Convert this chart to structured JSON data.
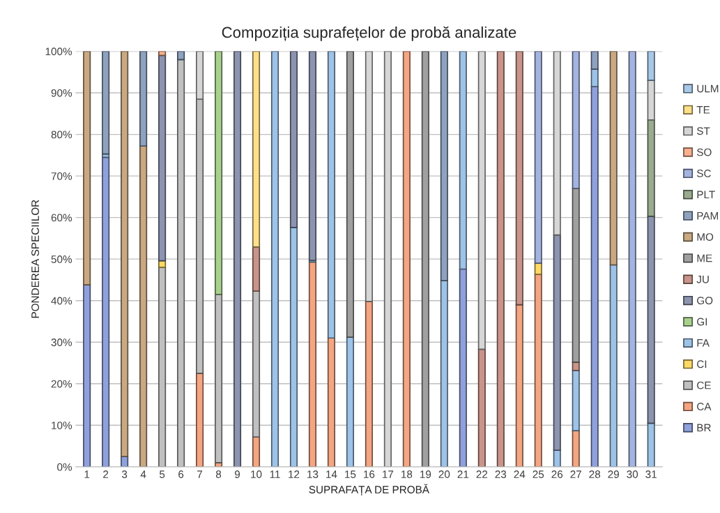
{
  "chart_data": {
    "type": "bar",
    "stacked": true,
    "title": "Compoziția suprafețelor de probă analizate",
    "xlabel": "SUPRAFAȚA DE PROBĂ",
    "ylabel": "PONDEREA SPECIILOR",
    "categories": [
      "1",
      "2",
      "3",
      "4",
      "5",
      "6",
      "7",
      "8",
      "9",
      "10",
      "11",
      "12",
      "13",
      "14",
      "15",
      "16",
      "17",
      "18",
      "19",
      "20",
      "21",
      "22",
      "23",
      "24",
      "25",
      "26",
      "27",
      "28",
      "29",
      "30",
      "31"
    ],
    "ylim": [
      0,
      100
    ],
    "yticks": [
      {
        "value": 0,
        "label": "0%"
      },
      {
        "value": 10,
        "label": "10%"
      },
      {
        "value": 20,
        "label": "20%"
      },
      {
        "value": 30,
        "label": "30%"
      },
      {
        "value": 40,
        "label": "40%"
      },
      {
        "value": 50,
        "label": "50%"
      },
      {
        "value": 60,
        "label": "60%"
      },
      {
        "value": 70,
        "label": "70%"
      },
      {
        "value": 80,
        "label": "80%"
      },
      {
        "value": 90,
        "label": "90%"
      },
      {
        "value": 100,
        "label": "100%"
      }
    ],
    "grid": "y",
    "legend": "right",
    "series": [
      {
        "name": "BR",
        "color": "#8fa0dc",
        "values": [
          43.8,
          74.5,
          2.5,
          null,
          null,
          null,
          null,
          null,
          null,
          null,
          null,
          null,
          null,
          null,
          null,
          null,
          null,
          null,
          null,
          null,
          47.6,
          null,
          null,
          null,
          null,
          null,
          null,
          91.5,
          null,
          null,
          null
        ]
      },
      {
        "name": "CA",
        "color": "#f4a582",
        "values": [
          null,
          null,
          null,
          null,
          null,
          null,
          22.5,
          1.0,
          null,
          7.2,
          null,
          null,
          49.3,
          31,
          null,
          39.8,
          null,
          100,
          null,
          null,
          null,
          null,
          null,
          39,
          46.3,
          null,
          8.7,
          null,
          null,
          null,
          null
        ]
      },
      {
        "name": "CE",
        "color": "#c0c0c0",
        "values": [
          null,
          null,
          null,
          null,
          48,
          98,
          66,
          40.5,
          null,
          35.1,
          null,
          null,
          null,
          null,
          null,
          null,
          null,
          null,
          null,
          null,
          null,
          null,
          null,
          null,
          null,
          null,
          null,
          null,
          null,
          null,
          null
        ]
      },
      {
        "name": "CI",
        "color": "#ffd966",
        "values": [
          null,
          null,
          null,
          null,
          1.6,
          null,
          null,
          null,
          null,
          null,
          null,
          null,
          null,
          null,
          null,
          null,
          null,
          null,
          null,
          null,
          null,
          null,
          null,
          null,
          2.7,
          null,
          null,
          null,
          null,
          null,
          null
        ]
      },
      {
        "name": "FA",
        "color": "#9dc3e6",
        "values": [
          null,
          0.8,
          null,
          null,
          null,
          null,
          null,
          null,
          null,
          null,
          100,
          57.6,
          0.4,
          69,
          31.2,
          null,
          null,
          null,
          null,
          44.8,
          52.4,
          null,
          null,
          null,
          null,
          4.0,
          14.5,
          4.2,
          48.6,
          null,
          10.5
        ]
      },
      {
        "name": "GI",
        "color": "#a9d18e",
        "values": [
          null,
          null,
          null,
          null,
          null,
          null,
          null,
          58.5,
          null,
          null,
          null,
          null,
          null,
          null,
          null,
          null,
          null,
          null,
          null,
          null,
          null,
          null,
          null,
          null,
          null,
          null,
          null,
          null,
          null,
          null,
          null
        ]
      },
      {
        "name": "GO",
        "color": "#8c94b0",
        "values": [
          null,
          null,
          null,
          null,
          49.4,
          null,
          null,
          null,
          100,
          null,
          null,
          42.4,
          50.3,
          null,
          null,
          null,
          null,
          null,
          null,
          null,
          null,
          null,
          null,
          null,
          null,
          51.8,
          null,
          null,
          null,
          null,
          49.8
        ]
      },
      {
        "name": "JU",
        "color": "#c9948a",
        "values": [
          null,
          null,
          null,
          null,
          null,
          null,
          null,
          null,
          null,
          10.6,
          null,
          null,
          null,
          null,
          null,
          null,
          null,
          null,
          null,
          null,
          null,
          28.3,
          100,
          61,
          null,
          null,
          2.0,
          null,
          null,
          null,
          null
        ]
      },
      {
        "name": "ME",
        "color": "#a0a0a0",
        "values": [
          null,
          null,
          null,
          null,
          null,
          null,
          null,
          null,
          null,
          null,
          null,
          null,
          null,
          null,
          68.8,
          null,
          null,
          null,
          100,
          null,
          null,
          null,
          null,
          null,
          null,
          null,
          41.8,
          null,
          null,
          null,
          null
        ]
      },
      {
        "name": "MO",
        "color": "#c9a882",
        "values": [
          56.2,
          null,
          97.5,
          77.2,
          null,
          null,
          null,
          null,
          null,
          null,
          null,
          null,
          null,
          null,
          null,
          null,
          null,
          null,
          null,
          null,
          null,
          null,
          null,
          null,
          null,
          null,
          null,
          null,
          51.4,
          null,
          null
        ]
      },
      {
        "name": "PAM",
        "color": "#8ea2c0",
        "values": [
          null,
          24.7,
          null,
          22.8,
          null,
          2,
          null,
          null,
          null,
          null,
          null,
          null,
          null,
          null,
          null,
          null,
          null,
          null,
          null,
          55.2,
          null,
          null,
          null,
          null,
          null,
          null,
          null,
          4.3,
          null,
          null,
          null
        ]
      },
      {
        "name": "PLT",
        "color": "#9aab8f",
        "values": [
          null,
          null,
          null,
          null,
          null,
          null,
          null,
          null,
          null,
          null,
          null,
          null,
          null,
          null,
          null,
          null,
          null,
          null,
          null,
          null,
          null,
          null,
          null,
          null,
          null,
          null,
          null,
          null,
          null,
          null,
          23.2
        ]
      },
      {
        "name": "SC",
        "color": "#a4b4e0",
        "values": [
          null,
          null,
          null,
          null,
          null,
          null,
          null,
          null,
          null,
          null,
          null,
          null,
          null,
          null,
          null,
          null,
          null,
          null,
          null,
          null,
          null,
          null,
          null,
          null,
          51,
          null,
          33,
          null,
          null,
          100,
          null
        ]
      },
      {
        "name": "SO",
        "color": "#f8b08e",
        "values": [
          null,
          null,
          null,
          null,
          1.0,
          null,
          null,
          null,
          null,
          null,
          null,
          null,
          null,
          null,
          null,
          null,
          null,
          null,
          null,
          null,
          null,
          null,
          null,
          null,
          null,
          null,
          null,
          null,
          null,
          null,
          null
        ]
      },
      {
        "name": "ST",
        "color": "#d6d6d6",
        "values": [
          null,
          null,
          null,
          null,
          null,
          null,
          11.5,
          null,
          null,
          null,
          null,
          null,
          null,
          null,
          null,
          60.2,
          100,
          null,
          null,
          null,
          null,
          71.7,
          null,
          null,
          null,
          44.2,
          null,
          null,
          null,
          null,
          9.5
        ]
      },
      {
        "name": "TE",
        "color": "#ffe08a",
        "values": [
          null,
          null,
          null,
          null,
          null,
          null,
          null,
          null,
          null,
          47.1,
          null,
          null,
          null,
          null,
          null,
          null,
          null,
          null,
          null,
          null,
          null,
          null,
          null,
          null,
          null,
          null,
          null,
          null,
          null,
          null,
          null
        ]
      },
      {
        "name": "ULM",
        "color": "#a8c8e8",
        "values": [
          null,
          null,
          null,
          null,
          null,
          null,
          null,
          null,
          null,
          null,
          null,
          null,
          null,
          null,
          null,
          null,
          null,
          null,
          null,
          null,
          null,
          null,
          null,
          null,
          null,
          null,
          null,
          null,
          null,
          null,
          7
        ]
      }
    ]
  }
}
